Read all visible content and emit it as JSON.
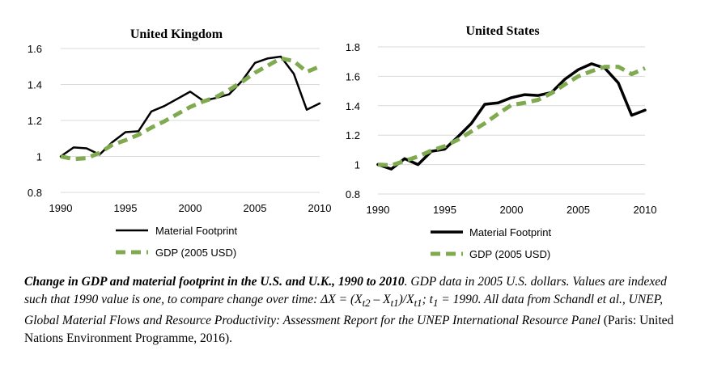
{
  "legend": {
    "material": "Material Footprint",
    "gdp": "GDP (2005 USD)"
  },
  "colors": {
    "material": "#000000",
    "gdp": "#7faa4f"
  },
  "caption": {
    "lead": "Change in GDP and material footprint in the U.S. and U.K., 1990 to 2010",
    "part1": ". GDP data in 2005 U.S. dollars. Values are indexed such that 1990 value is one, to compare change over time:  ΔX = (X",
    "sub1": "t2",
    "part2": " – X",
    "sub2": "t1",
    "part3": ")/X",
    "sub3": "t1",
    "part4": "; t",
    "sub4": "1",
    "part5": " = 1990. All data from Schandl et al., UNEP, Global Material Flows and Resource Productivity: Assessment Report for the UNEP International Resource Panel",
    "part6": " (Paris: United Nations Environment Programme, 2016)."
  },
  "chart_data": [
    {
      "type": "line",
      "title": "United Kingdom",
      "xlabel": "",
      "ylabel": "",
      "xlim": [
        1990,
        2010
      ],
      "ylim": [
        0.8,
        1.6
      ],
      "xticks": [
        1990,
        1995,
        2000,
        2005,
        2010
      ],
      "ytick_values": [
        0.8,
        1,
        1.2,
        1.4,
        1.6
      ],
      "ytick_labels": [
        "0.8",
        "1",
        "1.2",
        "1.4",
        "1.6"
      ],
      "grid": "horizontal",
      "legend_position": "bottom",
      "x": [
        1990,
        1991,
        1992,
        1993,
        1994,
        1995,
        1996,
        1997,
        1998,
        1999,
        2000,
        2001,
        2002,
        2003,
        2004,
        2005,
        2006,
        2007,
        2008,
        2009,
        2010
      ],
      "series": [
        {
          "name": "Material Footprint",
          "style": "solid",
          "values": [
            1.0,
            1.05,
            1.045,
            1.01,
            1.08,
            1.135,
            1.14,
            1.25,
            1.28,
            1.32,
            1.36,
            1.31,
            1.325,
            1.345,
            1.42,
            1.52,
            1.545,
            1.555,
            1.46,
            1.26,
            1.295
          ]
        },
        {
          "name": "GDP (2005 USD)",
          "style": "dashed",
          "values": [
            1.0,
            0.985,
            0.99,
            1.02,
            1.065,
            1.09,
            1.12,
            1.16,
            1.195,
            1.235,
            1.275,
            1.305,
            1.33,
            1.37,
            1.415,
            1.465,
            1.505,
            1.545,
            1.53,
            1.47,
            1.5
          ]
        }
      ]
    },
    {
      "type": "line",
      "title": "United States",
      "xlabel": "",
      "ylabel": "",
      "xlim": [
        1990,
        2010
      ],
      "ylim": [
        0.8,
        1.8
      ],
      "xticks": [
        1990,
        1995,
        2000,
        2005,
        2010
      ],
      "ytick_values": [
        0.8,
        1,
        1.2,
        1.4,
        1.6,
        1.8
      ],
      "ytick_labels": [
        "0.8",
        "1",
        "1.2",
        "1.4",
        "1.6",
        "1.8"
      ],
      "grid": "horizontal",
      "legend_position": "bottom",
      "x": [
        1990,
        1991,
        1992,
        1993,
        1994,
        1995,
        1996,
        1997,
        1998,
        1999,
        2000,
        2001,
        2002,
        2003,
        2004,
        2005,
        2006,
        2007,
        2008,
        2009,
        2010
      ],
      "series": [
        {
          "name": "Material Footprint",
          "style": "solid",
          "values": [
            1.0,
            0.97,
            1.04,
            1.0,
            1.09,
            1.105,
            1.19,
            1.28,
            1.41,
            1.42,
            1.455,
            1.475,
            1.47,
            1.49,
            1.58,
            1.645,
            1.685,
            1.655,
            1.555,
            1.335,
            1.37
          ]
        },
        {
          "name": "GDP (2005 USD)",
          "style": "dashed",
          "values": [
            1.0,
            0.995,
            1.025,
            1.055,
            1.095,
            1.125,
            1.17,
            1.225,
            1.28,
            1.345,
            1.405,
            1.42,
            1.44,
            1.485,
            1.545,
            1.6,
            1.635,
            1.665,
            1.665,
            1.615,
            1.655
          ]
        }
      ]
    }
  ]
}
